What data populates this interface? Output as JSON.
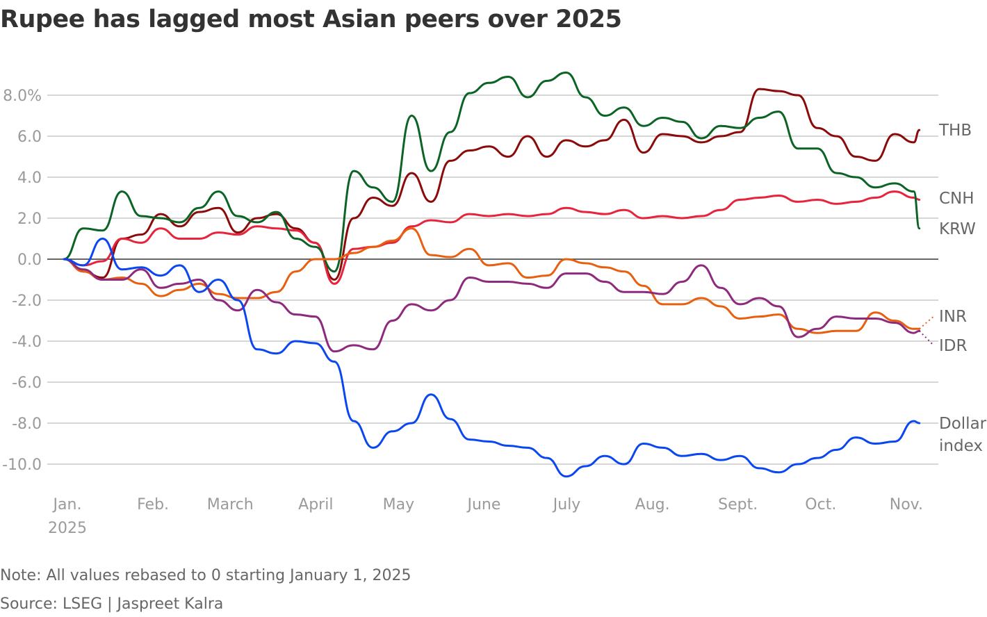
{
  "chart_data": {
    "type": "line",
    "title": "Rupee has lagged most Asian peers over 2025",
    "xlabel": "",
    "ylabel": "",
    "ylim": [
      -11,
      9.5
    ],
    "yticks": [
      8,
      6,
      4,
      2,
      0,
      -2,
      -4,
      -6,
      -8,
      -10
    ],
    "ytick_labels": [
      "8.0%",
      "6.0",
      "4.0",
      "2.0",
      "0.0",
      "-2.0",
      "-4.0",
      "-6.0",
      "-8.0",
      "-10.0"
    ],
    "xticks": [
      {
        "date": "2025-01-01",
        "label": "Jan.",
        "sublabel": "2025"
      },
      {
        "date": "2025-02-01",
        "label": "Feb."
      },
      {
        "date": "2025-03-01",
        "label": "March"
      },
      {
        "date": "2025-04-01",
        "label": "April"
      },
      {
        "date": "2025-05-01",
        "label": "May"
      },
      {
        "date": "2025-06-01",
        "label": "June"
      },
      {
        "date": "2025-07-01",
        "label": "July"
      },
      {
        "date": "2025-08-01",
        "label": "Aug."
      },
      {
        "date": "2025-09-01",
        "label": "Sept."
      },
      {
        "date": "2025-10-01",
        "label": "Oct."
      },
      {
        "date": "2025-11-01",
        "label": "Nov."
      }
    ],
    "grid": true,
    "legend": "direct labels at right end of lines",
    "x": [
      "2025-01-01",
      "2025-01-08",
      "2025-01-15",
      "2025-01-22",
      "2025-01-29",
      "2025-02-05",
      "2025-02-12",
      "2025-02-19",
      "2025-02-26",
      "2025-03-05",
      "2025-03-12",
      "2025-03-19",
      "2025-03-26",
      "2025-04-02",
      "2025-04-09",
      "2025-04-16",
      "2025-04-23",
      "2025-04-30",
      "2025-05-07",
      "2025-05-14",
      "2025-05-21",
      "2025-05-28",
      "2025-06-04",
      "2025-06-11",
      "2025-06-18",
      "2025-06-25",
      "2025-07-02",
      "2025-07-09",
      "2025-07-16",
      "2025-07-23",
      "2025-07-30",
      "2025-08-06",
      "2025-08-13",
      "2025-08-20",
      "2025-08-27",
      "2025-09-03",
      "2025-09-10",
      "2025-09-17",
      "2025-09-24",
      "2025-10-01",
      "2025-10-08",
      "2025-10-15",
      "2025-10-22",
      "2025-10-29",
      "2025-11-05",
      "2025-11-07"
    ],
    "series": [
      {
        "name": "THB",
        "color": "#8b0a0a",
        "values": [
          0,
          -0.6,
          -0.9,
          1.0,
          1.2,
          2.2,
          1.6,
          2.3,
          2.5,
          1.3,
          2.0,
          2.2,
          1.5,
          0.8,
          -1.0,
          2.0,
          3.0,
          2.6,
          4.2,
          2.8,
          4.8,
          5.3,
          5.5,
          5.0,
          6.0,
          5.0,
          5.8,
          5.5,
          5.8,
          6.8,
          5.2,
          6.1,
          6.0,
          5.7,
          6.0,
          6.2,
          8.3,
          8.2,
          8.0,
          6.4,
          6.0,
          5.0,
          4.8,
          6.1,
          5.7,
          6.3
        ]
      },
      {
        "name": "CNH",
        "color": "#e8243c",
        "values": [
          0,
          -0.3,
          -0.1,
          1.0,
          0.8,
          1.5,
          1.0,
          1.0,
          1.3,
          1.2,
          1.6,
          1.5,
          1.4,
          0.8,
          -1.2,
          0.5,
          0.6,
          0.8,
          1.6,
          1.9,
          1.8,
          2.2,
          2.1,
          2.2,
          2.1,
          2.2,
          2.5,
          2.3,
          2.2,
          2.4,
          2.0,
          2.1,
          2.0,
          2.1,
          2.4,
          2.9,
          3.0,
          3.1,
          2.8,
          2.9,
          2.7,
          2.8,
          3.0,
          3.3,
          3.0,
          2.9
        ]
      },
      {
        "name": "KRW",
        "color": "#0b6324",
        "values": [
          0,
          1.5,
          1.4,
          3.3,
          2.1,
          2.0,
          1.8,
          2.5,
          3.3,
          2.1,
          1.8,
          2.3,
          1.0,
          0.6,
          -0.6,
          4.3,
          3.5,
          2.8,
          7.0,
          4.3,
          6.2,
          8.1,
          8.6,
          8.9,
          7.9,
          8.7,
          9.1,
          7.9,
          7.0,
          7.4,
          6.5,
          6.9,
          6.7,
          5.9,
          6.5,
          6.4,
          6.9,
          7.2,
          5.4,
          5.4,
          4.2,
          4.0,
          3.5,
          3.7,
          3.3,
          1.5
        ]
      },
      {
        "name": "INR",
        "color": "#e8600f",
        "values": [
          0,
          -0.6,
          -1.0,
          -0.9,
          -1.2,
          -1.8,
          -1.5,
          -1.2,
          -1.7,
          -1.9,
          -1.9,
          -1.6,
          -0.6,
          0.0,
          0.0,
          0.3,
          0.6,
          0.9,
          1.5,
          0.2,
          0.1,
          0.5,
          -0.3,
          -0.2,
          -0.9,
          -0.8,
          0.0,
          -0.2,
          -0.4,
          -0.6,
          -1.3,
          -2.2,
          -2.2,
          -1.9,
          -2.3,
          -2.9,
          -2.8,
          -2.7,
          -3.4,
          -3.6,
          -3.5,
          -3.5,
          -2.6,
          -3.0,
          -3.4,
          -3.4
        ]
      },
      {
        "name": "IDR",
        "color": "#8e2a7e",
        "values": [
          0,
          -0.5,
          -1.0,
          -1.0,
          -0.5,
          -1.4,
          -1.2,
          -1.0,
          -2.0,
          -2.5,
          -1.5,
          -2.1,
          -2.7,
          -2.8,
          -4.5,
          -4.2,
          -4.4,
          -3.0,
          -2.2,
          -2.5,
          -2.0,
          -0.9,
          -1.1,
          -1.1,
          -1.2,
          -1.4,
          -0.7,
          -0.7,
          -1.1,
          -1.6,
          -1.6,
          -1.7,
          -1.1,
          -0.3,
          -1.4,
          -2.2,
          -1.9,
          -2.3,
          -3.8,
          -3.4,
          -2.8,
          -2.9,
          -2.9,
          -3.1,
          -3.6,
          -3.5
        ]
      },
      {
        "name": "Dollar index",
        "color": "#0a47f0",
        "values": [
          0,
          -0.3,
          1.0,
          -0.5,
          -0.4,
          -0.8,
          -0.3,
          -1.6,
          -1.0,
          -2.0,
          -4.4,
          -4.6,
          -4.0,
          -4.1,
          -5.0,
          -7.9,
          -9.2,
          -8.4,
          -8.0,
          -6.6,
          -7.8,
          -8.8,
          -8.9,
          -9.1,
          -9.2,
          -9.7,
          -10.6,
          -10.1,
          -9.6,
          -10.0,
          -9.0,
          -9.2,
          -9.6,
          -9.5,
          -9.8,
          -9.6,
          -10.2,
          -10.4,
          -10.0,
          -9.7,
          -9.3,
          -8.7,
          -9.0,
          -8.9,
          -7.9,
          -8.0
        ]
      }
    ],
    "series_labels": {
      "THB": "THB",
      "CNH": "CNH",
      "KRW": "KRW",
      "INR": "INR",
      "IDR": "IDR",
      "dollar_line1": "Dollar",
      "dollar_line2": "index"
    }
  },
  "footer": {
    "note": "Note: All values rebased to 0 starting January 1, 2025",
    "source": "Source: LSEG | Jaspreet Kalra"
  }
}
